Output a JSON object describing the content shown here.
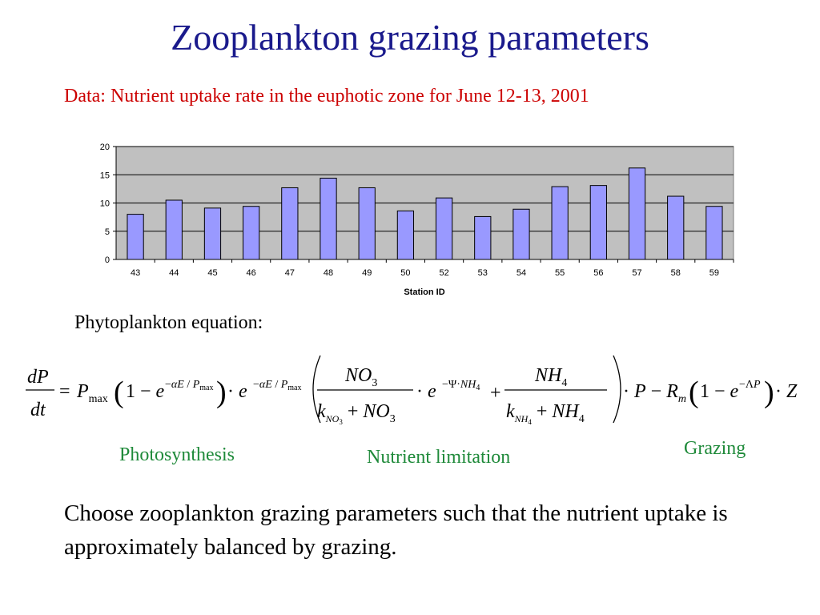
{
  "slide": {
    "title": "Zooplankton grazing parameters",
    "subtitle": "Data:  Nutrient uptake rate in the euphotic zone for June 12-13, 2001",
    "equation_heading": "Phytoplankton equation:",
    "labels": {
      "photosynthesis": "Photosynthesis",
      "nutrient_limitation": "Nutrient limitation",
      "grazing": "Grazing"
    },
    "conclusion": "Choose zooplankton grazing parameters such that the nutrient uptake is approximately balanced by grazing."
  },
  "chart_data": {
    "type": "bar",
    "title": "",
    "xlabel": "Station ID",
    "ylabel": "",
    "categories": [
      "43",
      "44",
      "45",
      "46",
      "47",
      "48",
      "49",
      "50",
      "52",
      "53",
      "54",
      "55",
      "56",
      "57",
      "58",
      "59"
    ],
    "values": [
      8.0,
      10.5,
      9.1,
      9.4,
      12.7,
      14.4,
      12.7,
      8.6,
      10.9,
      7.6,
      8.9,
      12.9,
      13.1,
      16.2,
      11.2,
      9.4
    ],
    "ylim": [
      0,
      20
    ],
    "yticks": [
      0,
      5,
      10,
      15,
      20
    ],
    "grid": true,
    "legend": "none",
    "colors": {
      "bar_fill": "#9999ff",
      "plot_bg": "#c0c0c0",
      "bar_stroke": "#000000"
    }
  }
}
